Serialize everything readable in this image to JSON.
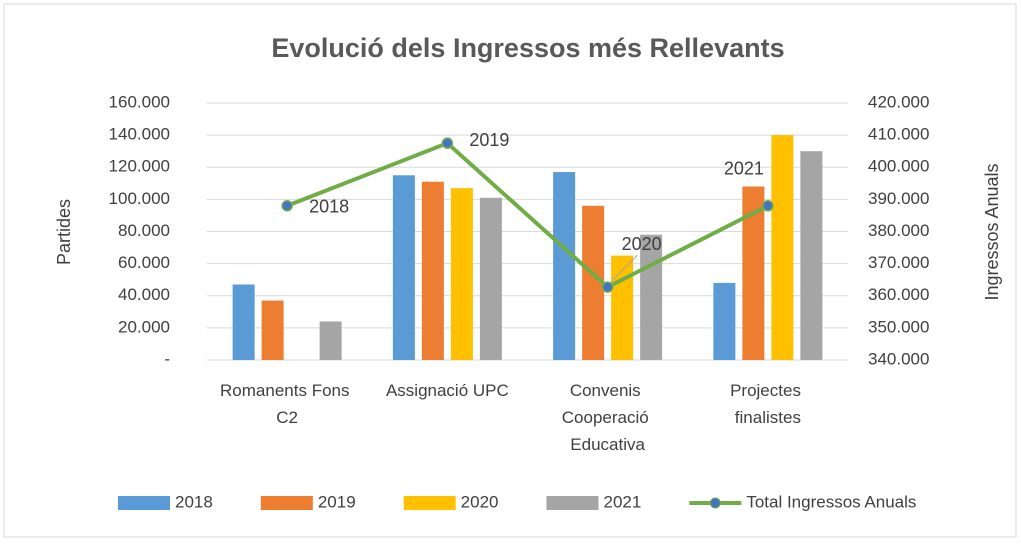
{
  "chart_data": {
    "type": "bar-line",
    "title": "Evolució dels Ingressos més Rellevants",
    "y_label": "Partides",
    "y2_label": "Ingressos Anuals",
    "categories": [
      "Romanents Fons C2",
      "Assignació UPC",
      "Convenis Cooperació Educativa",
      "Projectes finalistes"
    ],
    "series": [
      {
        "name": "2018",
        "type": "bar",
        "color": "#5b9bd5",
        "values": [
          47000,
          115000,
          117000,
          48000
        ]
      },
      {
        "name": "2019",
        "type": "bar",
        "color": "#ed7d31",
        "values": [
          37000,
          111000,
          96000,
          108000
        ]
      },
      {
        "name": "2020",
        "type": "bar",
        "color": "#ffc000",
        "values": [
          0,
          107000,
          65000,
          140000
        ]
      },
      {
        "name": "2021",
        "type": "bar",
        "color": "#a5a5a5",
        "values": [
          24000,
          101000,
          78000,
          130000
        ]
      },
      {
        "name": "Total Ingressos Anuals",
        "type": "line",
        "axis": "y2",
        "color": "#70ad47",
        "marker_color": "#4472c4",
        "values": [
          388000,
          407500,
          362700,
          388000
        ],
        "point_labels": [
          "2018",
          "2019",
          "2020",
          "2021"
        ]
      }
    ],
    "ylim": [
      0,
      160000
    ],
    "yticks": [
      {
        "value": 0,
        "label": "-"
      },
      {
        "value": 20000,
        "label": "20.000"
      },
      {
        "value": 40000,
        "label": "40.000"
      },
      {
        "value": 60000,
        "label": "60.000"
      },
      {
        "value": 80000,
        "label": "80.000"
      },
      {
        "value": 100000,
        "label": "100.000"
      },
      {
        "value": 120000,
        "label": "120.000"
      },
      {
        "value": 140000,
        "label": "140.000"
      },
      {
        "value": 160000,
        "label": "160.000"
      }
    ],
    "y2lim": [
      340000,
      420000
    ],
    "y2ticks": [
      {
        "value": 340000,
        "label": "340.000"
      },
      {
        "value": 350000,
        "label": "350.000"
      },
      {
        "value": 360000,
        "label": "360.000"
      },
      {
        "value": 370000,
        "label": "370.000"
      },
      {
        "value": 380000,
        "label": "380.000"
      },
      {
        "value": 390000,
        "label": "390.000"
      },
      {
        "value": 400000,
        "label": "400.000"
      },
      {
        "value": 410000,
        "label": "410.000"
      },
      {
        "value": 420000,
        "label": "420.000"
      }
    ],
    "grid": true,
    "legend": "bottom"
  }
}
